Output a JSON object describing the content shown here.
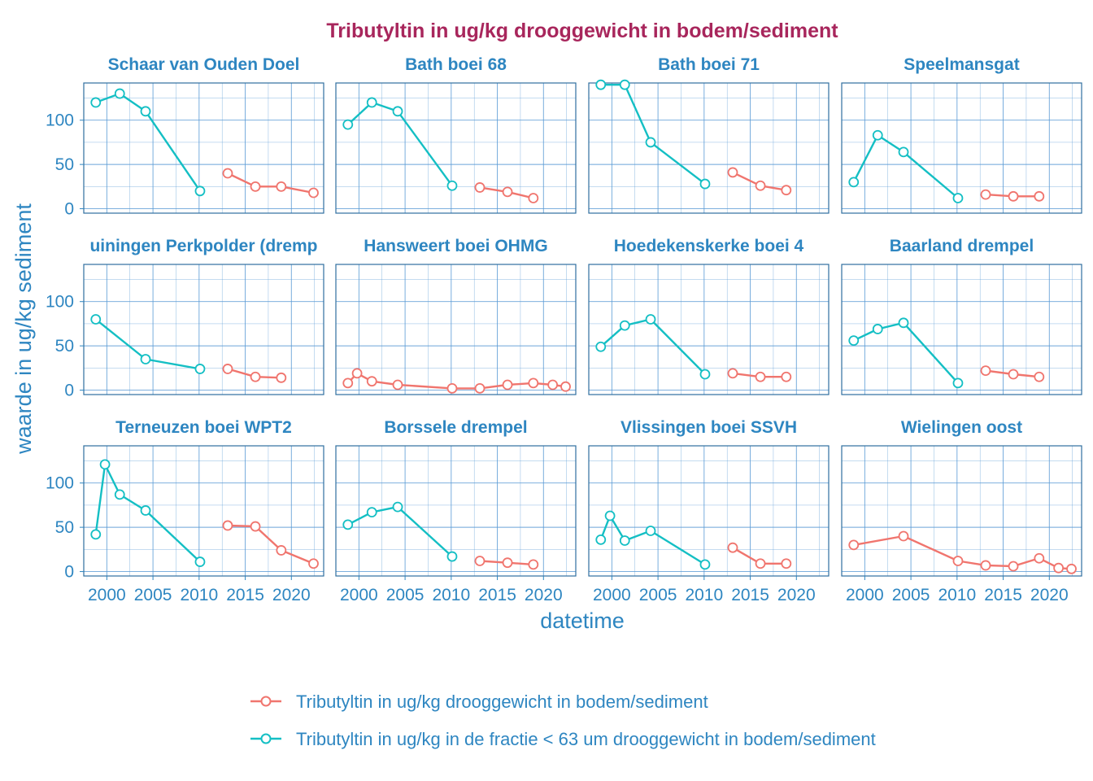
{
  "chart_data": {
    "type": "line",
    "title": "Tributyltin in ug/kg drooggewicht in bodem/sediment",
    "xlabel": "datetime",
    "ylabel": "waarde in ug/kg sediment",
    "xlim": [
      1997.5,
      2023.5
    ],
    "ylim": [
      -5,
      142
    ],
    "x_ticks": [
      2000,
      2005,
      2010,
      2015,
      2020
    ],
    "y_ticks": [
      0,
      50,
      100
    ],
    "grid": true,
    "legend_position": "bottom",
    "series_styles": [
      {
        "name": "Tributyltin in ug/kg drooggewicht in bodem/sediment",
        "color": "#f0756e",
        "marker": "open-circle"
      },
      {
        "name": "Tributyltin in ug/kg in de fractie < 63 um drooggewicht in bodem/sediment",
        "color": "#14bfc4",
        "marker": "open-circle"
      }
    ],
    "panels": [
      {
        "title": "Schaar van Ouden Doel",
        "series": [
          {
            "name": "Tributyltin in ug/kg in de fractie < 63 um drooggewicht in bodem/sediment",
            "x": [
              1998.8,
              2001.4,
              2004.2,
              2010.1
            ],
            "y": [
              120,
              130,
              110,
              20
            ]
          },
          {
            "name": "Tributyltin in ug/kg drooggewicht in bodem/sediment",
            "x": [
              2013.1,
              2016.1,
              2018.9,
              2022.4
            ],
            "y": [
              40,
              25,
              25,
              18
            ]
          }
        ]
      },
      {
        "title": "Bath boei 68",
        "series": [
          {
            "name": "Tributyltin in ug/kg in de fractie < 63 um drooggewicht in bodem/sediment",
            "x": [
              1998.8,
              2001.4,
              2004.2,
              2010.1
            ],
            "y": [
              95,
              120,
              110,
              26
            ]
          },
          {
            "name": "Tributyltin in ug/kg drooggewicht in bodem/sediment",
            "x": [
              2013.1,
              2016.1,
              2018.9
            ],
            "y": [
              24,
              19,
              12
            ]
          }
        ]
      },
      {
        "title": "Bath boei 71",
        "series": [
          {
            "name": "Tributyltin in ug/kg in de fractie < 63 um drooggewicht in bodem/sediment",
            "x": [
              1998.8,
              2001.4,
              2004.2,
              2010.1
            ],
            "y": [
              140,
              140,
              75,
              28
            ]
          },
          {
            "name": "Tributyltin in ug/kg drooggewicht in bodem/sediment",
            "x": [
              2013.1,
              2016.1,
              2018.9
            ],
            "y": [
              41,
              26,
              21
            ]
          }
        ]
      },
      {
        "title": "Speelmansgat",
        "series": [
          {
            "name": "Tributyltin in ug/kg in de fractie < 63 um drooggewicht in bodem/sediment",
            "x": [
              1998.8,
              2001.4,
              2004.2,
              2010.1
            ],
            "y": [
              30,
              83,
              64,
              12
            ]
          },
          {
            "name": "Tributyltin in ug/kg drooggewicht in bodem/sediment",
            "x": [
              2013.1,
              2016.1,
              2018.9
            ],
            "y": [
              16,
              14,
              14
            ]
          }
        ]
      },
      {
        "title": "Hansweert boei OHMG",
        "series": [
          {
            "name": "Tributyltin in ug/kg drooggewicht in bodem/sediment",
            "x": [
              1998.8,
              1999.8,
              2001.4,
              2004.2,
              2010.1,
              2013.1,
              2016.1,
              2018.9,
              2021.0,
              2022.4
            ],
            "y": [
              8,
              19,
              10,
              6,
              2,
              2,
              6,
              8,
              6,
              4
            ]
          }
        ]
      },
      {
        "title": "Hoedekenskerke boei 4",
        "series": [
          {
            "name": "Tributyltin in ug/kg in de fractie < 63 um drooggewicht in bodem/sediment",
            "x": [
              1998.8,
              2001.4,
              2004.2,
              2010.1
            ],
            "y": [
              49,
              73,
              80,
              18
            ]
          },
          {
            "name": "Tributyltin in ug/kg drooggewicht in bodem/sediment",
            "x": [
              2013.1,
              2016.1,
              2018.9
            ],
            "y": [
              19,
              15,
              15
            ]
          }
        ]
      },
      {
        "title": "Baarland drempel",
        "series": [
          {
            "name": "Tributyltin in ug/kg in de fractie < 63 um drooggewicht in bodem/sediment",
            "x": [
              1998.8,
              2001.4,
              2004.2,
              2010.1
            ],
            "y": [
              56,
              69,
              76,
              8
            ]
          },
          {
            "name": "Tributyltin in ug/kg drooggewicht in bodem/sediment",
            "x": [
              2013.1,
              2016.1,
              2018.9
            ],
            "y": [
              22,
              18,
              15
            ]
          }
        ]
      },
      {
        "title": "Terneuzen boei WPT2",
        "series": [
          {
            "name": "Tributyltin in ug/kg in de fractie < 63 um drooggewicht in bodem/sediment",
            "x": [
              1998.8,
              1999.8,
              2001.4,
              2004.2,
              2010.1
            ],
            "y": [
              42,
              121,
              87,
              69,
              11
            ]
          },
          {
            "name": "Tributyltin in ug/kg drooggewicht in bodem/sediment",
            "x": [
              2013.1,
              2016.1,
              2018.9,
              2022.4
            ],
            "y": [
              52,
              51,
              24,
              9
            ]
          }
        ]
      },
      {
        "title": "Borssele drempel",
        "series": [
          {
            "name": "Tributyltin in ug/kg in de fractie < 63 um drooggewicht in bodem/sediment",
            "x": [
              1998.8,
              2001.4,
              2004.2,
              2010.1
            ],
            "y": [
              53,
              67,
              73,
              17
            ]
          },
          {
            "name": "Tributyltin in ug/kg drooggewicht in bodem/sediment",
            "x": [
              2013.1,
              2016.1,
              2018.9
            ],
            "y": [
              12,
              10,
              8
            ]
          }
        ]
      },
      {
        "title": "Vlissingen boei SSVH",
        "series": [
          {
            "name": "Tributyltin in ug/kg in de fractie < 63 um drooggewicht in bodem/sediment",
            "x": [
              1998.8,
              1999.8,
              2001.4,
              2004.2,
              2010.1
            ],
            "y": [
              36,
              63,
              35,
              46,
              8
            ]
          },
          {
            "name": "Tributyltin in ug/kg drooggewicht in bodem/sediment",
            "x": [
              2013.1,
              2016.1,
              2018.9
            ],
            "y": [
              27,
              9,
              9
            ]
          }
        ]
      },
      {
        "title": "Wielingen oost",
        "series": [
          {
            "name": "Tributyltin in ug/kg drooggewicht in bodem/sediment",
            "x": [
              1998.8,
              2004.2,
              2010.1,
              2013.1,
              2016.1,
              2018.9,
              2021.0,
              2022.4
            ],
            "y": [
              30,
              40,
              12,
              7,
              6,
              15,
              4,
              3
            ]
          }
        ]
      }
    ],
    "partial_panels": [
      {
        "title": "uiningen Perkpolder (dremp",
        "series": [
          {
            "name": "Tributyltin in ug/kg in de fractie < 63 um drooggewicht in bodem/sediment",
            "x": [
              1998.8,
              2004.2,
              2010.1
            ],
            "y": [
              80,
              35,
              24
            ]
          },
          {
            "name": "Tributyltin in ug/kg drooggewicht in bodem/sediment",
            "x": [
              2013.1,
              2016.1,
              2018.9
            ],
            "y": [
              24,
              15,
              14
            ]
          }
        ]
      }
    ]
  }
}
